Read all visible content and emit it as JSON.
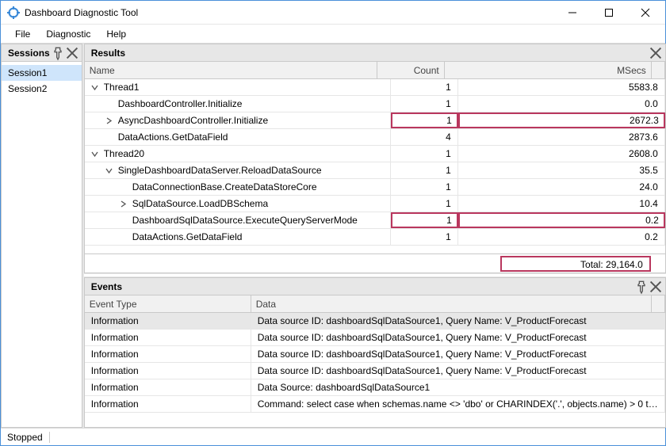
{
  "window": {
    "title": "Dashboard Diagnostic Tool"
  },
  "menu": {
    "items": [
      "File",
      "Diagnostic",
      "Help"
    ]
  },
  "sessions": {
    "title": "Sessions",
    "items": [
      {
        "label": "Session1",
        "selected": true
      },
      {
        "label": "Session2",
        "selected": false
      }
    ]
  },
  "results": {
    "title": "Results",
    "columns": {
      "name": "Name",
      "count": "Count",
      "msecs": "MSecs"
    },
    "total_label": "Total: 29,164.0",
    "highlight_color": "#b9375e",
    "rows": [
      {
        "indent": 0,
        "expander": "open",
        "name": "Thread1",
        "count": "1",
        "msecs": "5583.8",
        "highlight": false
      },
      {
        "indent": 1,
        "expander": "none",
        "name": "DashboardController.Initialize",
        "count": "1",
        "msecs": "0.0",
        "highlight": false
      },
      {
        "indent": 1,
        "expander": "closed",
        "name": "AsyncDashboardController.Initialize",
        "count": "1",
        "msecs": "2672.3",
        "highlight": true
      },
      {
        "indent": 1,
        "expander": "none",
        "name": "DataActions.GetDataField",
        "count": "4",
        "msecs": "2873.6",
        "highlight": false
      },
      {
        "indent": 0,
        "expander": "open",
        "name": "Thread20",
        "count": "1",
        "msecs": "2608.0",
        "highlight": false
      },
      {
        "indent": 1,
        "expander": "open",
        "name": "SingleDashboardDataServer.ReloadDataSource",
        "count": "1",
        "msecs": "35.5",
        "highlight": false
      },
      {
        "indent": 2,
        "expander": "none",
        "name": "DataConnectionBase.CreateDataStoreCore",
        "count": "1",
        "msecs": "24.0",
        "highlight": false
      },
      {
        "indent": 2,
        "expander": "closed",
        "name": "SqlDataSource.LoadDBSchema",
        "count": "1",
        "msecs": "10.4",
        "highlight": false
      },
      {
        "indent": 2,
        "expander": "none",
        "name": "DashboardSqlDataSource.ExecuteQueryServerMode",
        "count": "1",
        "msecs": "0.2",
        "highlight": true
      },
      {
        "indent": 2,
        "expander": "none",
        "name": "DataActions.GetDataField",
        "count": "1",
        "msecs": "0.2",
        "highlight": false
      }
    ]
  },
  "events": {
    "title": "Events",
    "columns": {
      "type": "Event Type",
      "data": "Data"
    },
    "rows": [
      {
        "type": "Information",
        "data": "Data source ID: dashboardSqlDataSource1, Query Name: V_ProductForecast",
        "selected": true
      },
      {
        "type": "Information",
        "data": "Data source ID: dashboardSqlDataSource1, Query Name: V_ProductForecast",
        "selected": false
      },
      {
        "type": "Information",
        "data": "Data source ID: dashboardSqlDataSource1, Query Name: V_ProductForecast",
        "selected": false
      },
      {
        "type": "Information",
        "data": "Data source ID: dashboardSqlDataSource1, Query Name: V_ProductForecast",
        "selected": false
      },
      {
        "type": "Information",
        "data": "Data Source: dashboardSqlDataSource1",
        "selected": false
      },
      {
        "type": "Information",
        "data": "Command: select case when schemas.name <> 'dbo' or CHARINDEX('.', objects.name) > 0 t…",
        "selected": false
      }
    ]
  },
  "status": {
    "text": "Stopped"
  }
}
